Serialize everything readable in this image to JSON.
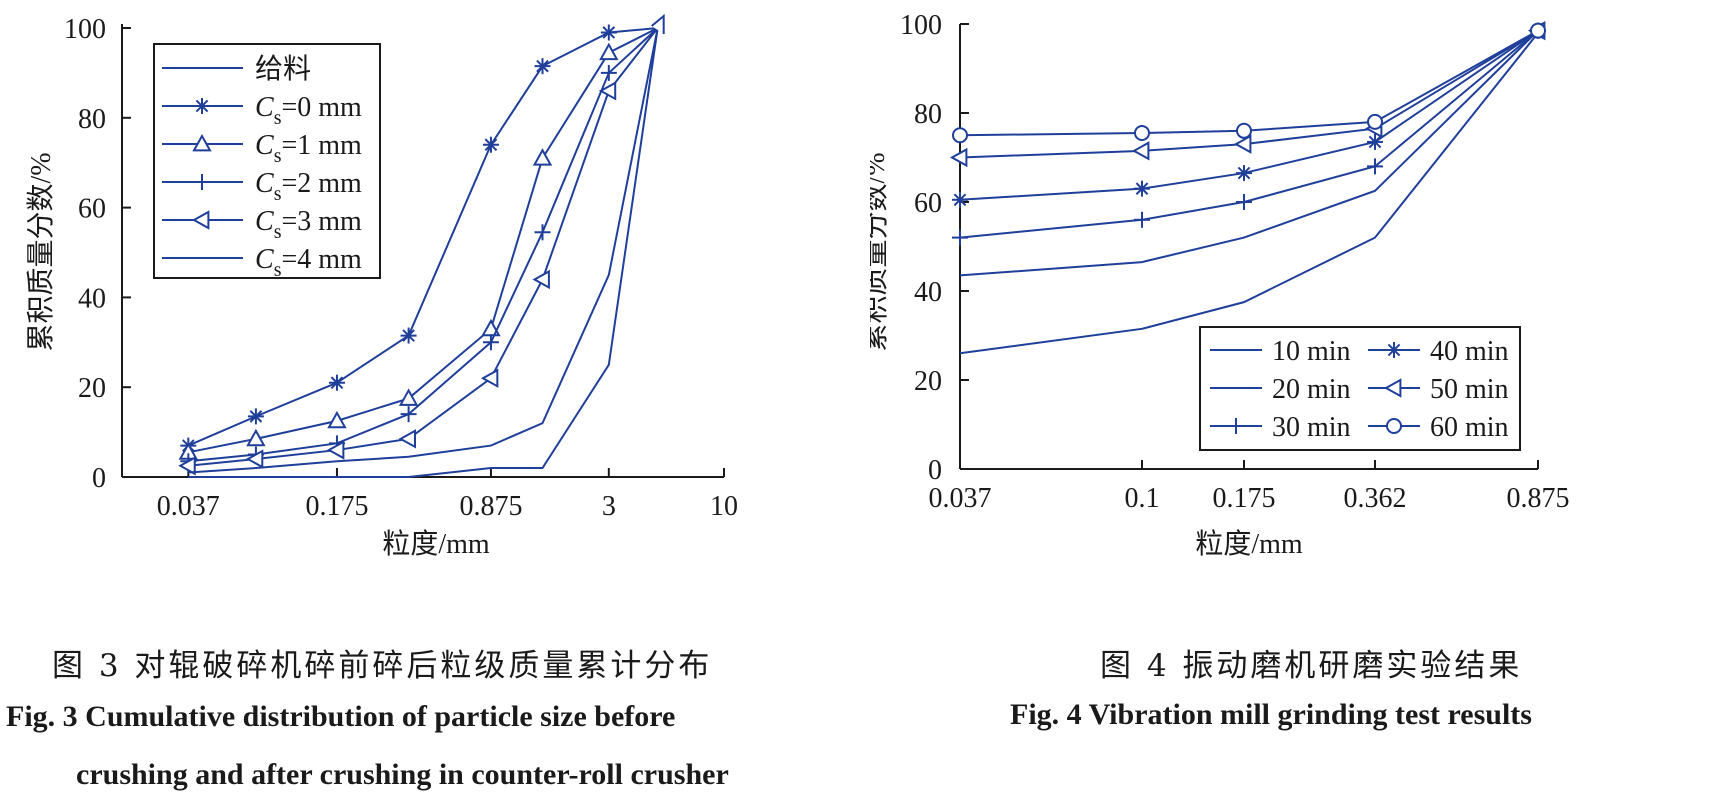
{
  "colors": {
    "series": "#1f3f9a",
    "axis": "#1a1a1a"
  },
  "figure3": {
    "caption_cn": "图 3   对辊破碎机碎前碎后粒级质量累计分布",
    "caption_en_line1": "Fig. 3   Cumulative distribution of particle size before",
    "caption_en_line2": "crushing and after crushing in counter-roll crusher"
  },
  "figure4": {
    "caption_cn": "图 4   振动磨机研磨实验结果",
    "caption_en": "Fig. 4   Vibration mill grinding test results"
  },
  "chart_data": [
    {
      "type": "line",
      "xlabel": "粒度/mm",
      "ylabel": "累积质量分数/%",
      "x_scale": "log",
      "xlim": [
        0.0185,
        10
      ],
      "ylim": [
        0,
        100
      ],
      "x_ticks": [
        0.037,
        0.175,
        0.875,
        3,
        10
      ],
      "x_tick_labels": [
        "0.037",
        "0.175",
        "0.875",
        "3",
        "10"
      ],
      "y_ticks": [
        0,
        20,
        40,
        60,
        80,
        100
      ],
      "grid": false,
      "legend_position": "top-left",
      "x": [
        0.037,
        0.075,
        0.175,
        0.37,
        0.875,
        1.5,
        3,
        5
      ],
      "series": [
        {
          "name": "给料",
          "marker": "none",
          "legend_sub": "",
          "values": [
            0,
            0,
            0,
            0,
            2,
            2,
            25,
            100
          ]
        },
        {
          "name": "C",
          "legend_sub": "s",
          "legend_suffix": "=0 mm",
          "marker": "asterisk",
          "values": [
            7,
            13.5,
            21,
            31.5,
            74,
            91.5,
            99,
            100
          ]
        },
        {
          "name": "C",
          "legend_sub": "s",
          "legend_suffix": "=1 mm",
          "marker": "triangle-up",
          "values": [
            5.5,
            8.5,
            12.5,
            17.5,
            33,
            71,
            94.5,
            100
          ]
        },
        {
          "name": "C",
          "legend_sub": "s",
          "legend_suffix": "=2 mm",
          "marker": "plus",
          "values": [
            3.5,
            5,
            7.5,
            14,
            30,
            54.5,
            90,
            100
          ]
        },
        {
          "name": "C",
          "legend_sub": "s",
          "legend_suffix": "=3 mm",
          "marker": "triangle-left",
          "values": [
            2.5,
            4,
            6,
            8.5,
            22,
            44,
            86,
            100
          ]
        },
        {
          "name": "C",
          "legend_sub": "s",
          "legend_suffix": "=4 mm",
          "marker": "none",
          "values": [
            1,
            2,
            3.5,
            4.5,
            7,
            12,
            45,
            100
          ]
        }
      ]
    },
    {
      "type": "line",
      "xlabel": "粒度/mm",
      "ylabel": "累积质量分数/%",
      "ylim": [
        0,
        100
      ],
      "categories": [
        "0.037",
        "0.1",
        "0.175",
        "0.362",
        "0.875"
      ],
      "y_ticks": [
        0,
        20,
        40,
        60,
        80,
        100
      ],
      "grid": false,
      "legend_position": "bottom-right",
      "series": [
        {
          "name": "10 min",
          "marker": "none",
          "values": [
            26,
            31.5,
            37.5,
            52,
            98
          ]
        },
        {
          "name": "20 min",
          "marker": "none",
          "values": [
            43.5,
            46.5,
            52,
            62.5,
            98.5
          ]
        },
        {
          "name": "30 min",
          "marker": "plus",
          "values": [
            52,
            56,
            60,
            68,
            98.5
          ]
        },
        {
          "name": "40 min",
          "marker": "asterisk",
          "values": [
            60.5,
            63,
            66.5,
            73.5,
            98.5
          ]
        },
        {
          "name": "50 min",
          "marker": "triangle-left",
          "values": [
            70,
            71.5,
            73,
            76.5,
            98.5
          ]
        },
        {
          "name": "60 min",
          "marker": "circle",
          "values": [
            75,
            75.5,
            76,
            78,
            98.5
          ]
        }
      ]
    }
  ]
}
